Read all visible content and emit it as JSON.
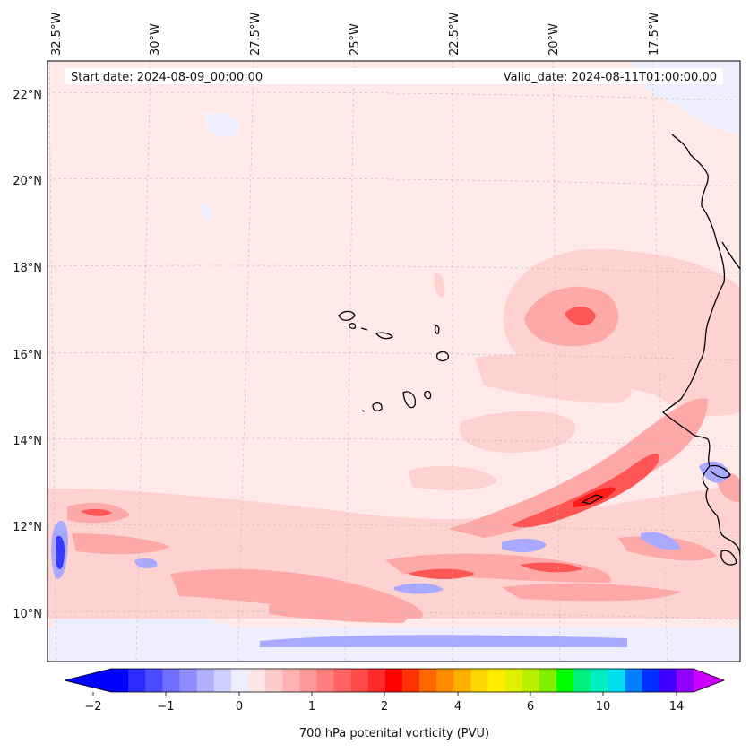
{
  "header": {
    "start_date": "Start date: 2024-08-09_00:00:00",
    "valid_date": "Valid_date: 2024-08-11T01:00:00.00"
  },
  "map": {
    "lon_labels": [
      "32.5°W",
      "30°W",
      "27.5°W",
      "25°W",
      "22.5°W",
      "20°W",
      "17.5°W"
    ],
    "lat_labels": [
      "22°N",
      "20°N",
      "18°N",
      "16°N",
      "14°N",
      "12°N",
      "10°N"
    ]
  },
  "colorbar": {
    "label": "700 hPa potenital vorticity (PVU)",
    "tick_labels": [
      "−2",
      "−1",
      "0",
      "1",
      "2",
      "4",
      "6",
      "10",
      "14"
    ],
    "colors": [
      "#0000ff",
      "#2b2bff",
      "#4a4aff",
      "#6e6eff",
      "#8d8dff",
      "#b0b0ff",
      "#d0d0ff",
      "#eeeeff",
      "#ffe6e6",
      "#ffcccc",
      "#ffb3b3",
      "#ff9a9a",
      "#ff7f7f",
      "#ff6464",
      "#ff4a4a",
      "#ff2b2b",
      "#ff0000",
      "#ff3300",
      "#ff6600",
      "#ff8c00",
      "#ffb000",
      "#ffd700",
      "#ffee00",
      "#e0f000",
      "#b8f000",
      "#80f000",
      "#00ff00",
      "#00f080",
      "#00f0c0",
      "#00e0f0",
      "#0080ff",
      "#0030ff",
      "#4000ff",
      "#9000ff"
    ],
    "extend_low_color": "#0000ff",
    "extend_high_color": "#cc00ff"
  }
}
